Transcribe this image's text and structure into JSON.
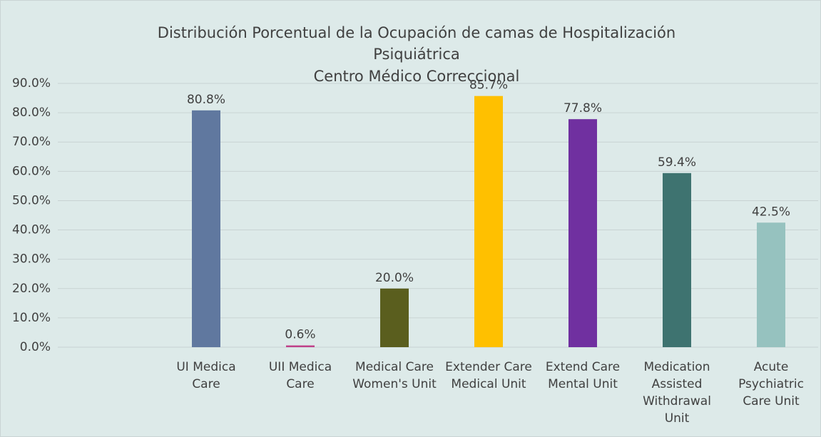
{
  "chart_data": {
    "type": "bar",
    "title": [
      "Distribución Porcentual de la Ocupación de camas de Hospitalización",
      "Psiquiátrica",
      "Centro Médico Correccional"
    ],
    "categories": [
      null,
      "UI Medica Care",
      "UII Medica Care",
      "Medical Care Women's Unit",
      "Extender Care Medical Unit",
      "Extend Care Mental Unit",
      "Medication Assisted Withdrawal Unit",
      "Acute Psychiatric Care Unit"
    ],
    "values": [
      null,
      80.8,
      0.6,
      20.0,
      85.7,
      77.8,
      59.4,
      42.5
    ],
    "value_labels": [
      null,
      "80.8%",
      "0.6%",
      "20.0%",
      "85.7%",
      "77.8%",
      "59.4%",
      "42.5%"
    ],
    "colors": [
      null,
      "#60789f",
      "#c0428a",
      "#5a5e1e",
      "#ffc000",
      "#7030a0",
      "#3e7370",
      "#96c2bf"
    ],
    "ylim": [
      0,
      90
    ],
    "yticks": [
      {
        "value": 0,
        "label": "0.0%"
      },
      {
        "value": 10,
        "label": "10.0%"
      },
      {
        "value": 20,
        "label": "20.0%"
      },
      {
        "value": 30,
        "label": "30.0%"
      },
      {
        "value": 40,
        "label": "40.0%"
      },
      {
        "value": 50,
        "label": "50.0%"
      },
      {
        "value": 60,
        "label": "60.0%"
      },
      {
        "value": 70,
        "label": "70.0%"
      },
      {
        "value": 80,
        "label": "80.0%"
      },
      {
        "value": 90,
        "label": "90.0%"
      }
    ],
    "grid": true
  }
}
